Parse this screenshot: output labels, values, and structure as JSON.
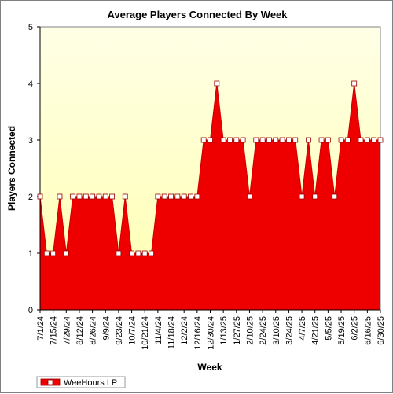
{
  "chart_data": {
    "type": "area",
    "title": "Average Players Connected By Week",
    "xlabel": "Week",
    "ylabel": "Players Connected",
    "ylim": [
      0,
      5
    ],
    "yticks": [
      "0",
      "1",
      "2",
      "3",
      "4",
      "5"
    ],
    "grid": false,
    "legend_position": "bottom-left",
    "colors": {
      "area_fill": "#ee0000",
      "line": "#cc0000",
      "plot_background_top": "#ffffe6",
      "plot_background_bottom": "#ffffb0",
      "marker_fill": "#ffffff",
      "marker_stroke": "#990000"
    },
    "x_tick_labels": [
      "7/1/24",
      "7/15/24",
      "7/29/24",
      "8/12/24",
      "8/26/24",
      "9/9/24",
      "9/23/24",
      "10/7/24",
      "10/21/24",
      "11/4/24",
      "11/18/24",
      "12/2/24",
      "12/16/24",
      "12/30/24",
      "1/13/25",
      "1/27/25",
      "2/10/25",
      "2/24/25",
      "3/10/25",
      "3/24/25",
      "4/7/25",
      "4/21/25",
      "5/5/25",
      "5/19/25",
      "6/2/25",
      "6/16/25",
      "6/30/25"
    ],
    "x": [
      "7/1/24",
      "7/8/24",
      "7/15/24",
      "7/22/24",
      "7/29/24",
      "8/5/24",
      "8/12/24",
      "8/19/24",
      "8/26/24",
      "9/2/24",
      "9/9/24",
      "9/16/24",
      "9/23/24",
      "9/30/24",
      "10/7/24",
      "10/14/24",
      "10/21/24",
      "10/28/24",
      "11/4/24",
      "11/11/24",
      "11/18/24",
      "11/25/24",
      "12/2/24",
      "12/9/24",
      "12/16/24",
      "12/23/24",
      "12/30/24",
      "1/6/25",
      "1/13/25",
      "1/20/25",
      "1/27/25",
      "2/3/25",
      "2/10/25",
      "2/17/25",
      "2/24/25",
      "3/3/25",
      "3/10/25",
      "3/17/25",
      "3/24/25",
      "3/31/25",
      "4/7/25",
      "4/14/25",
      "4/21/25",
      "4/28/25",
      "5/5/25",
      "5/12/25",
      "5/19/25",
      "5/26/25",
      "6/2/25",
      "6/9/25",
      "6/16/25",
      "6/23/25",
      "6/30/25"
    ],
    "series": [
      {
        "name": "WeeHours LP",
        "values": [
          2,
          1,
          1,
          2,
          1,
          2,
          2,
          2,
          2,
          2,
          2,
          2,
          1,
          2,
          1,
          1,
          1,
          1,
          2,
          2,
          2,
          2,
          2,
          2,
          2,
          3,
          3,
          4,
          3,
          3,
          3,
          3,
          2,
          3,
          3,
          3,
          3,
          3,
          3,
          3,
          2,
          3,
          2,
          3,
          3,
          2,
          3,
          3,
          4,
          3,
          3,
          3,
          3
        ]
      }
    ]
  }
}
